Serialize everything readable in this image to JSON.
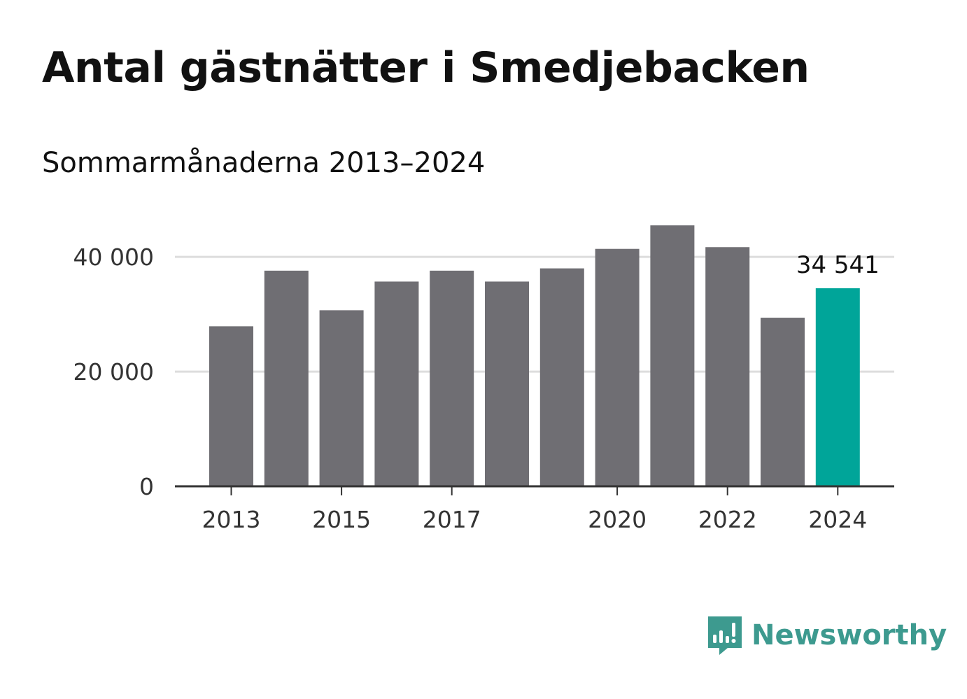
{
  "title": "Antal gästnätter i Smedjebacken",
  "subtitle": "Sommarmånaderna 2013–2024",
  "brand": {
    "name": "Newsworthy",
    "color": "#3d9a8f"
  },
  "colors": {
    "bar": "#6f6e73",
    "highlight": "#00a599",
    "grid": "#dddddd",
    "axis": "#333333"
  },
  "chart_data": {
    "type": "bar",
    "title": "Antal gästnätter i Smedjebacken",
    "subtitle": "Sommarmånaderna 2013–2024",
    "categories": [
      "2013",
      "2014",
      "2015",
      "2016",
      "2017",
      "2018",
      "2019",
      "2020",
      "2021",
      "2022",
      "2023",
      "2024"
    ],
    "values": [
      27900,
      37600,
      30700,
      35700,
      37600,
      35700,
      38000,
      41400,
      45500,
      41700,
      29400,
      34541
    ],
    "highlight_index": 11,
    "highlight_label": "34 541",
    "ylim": [
      0,
      46000
    ],
    "y_ticks": [
      {
        "value": 0,
        "label": "0"
      },
      {
        "value": 20000,
        "label": "20 000"
      },
      {
        "value": 40000,
        "label": "40 000"
      }
    ],
    "x_tick_labels": [
      "2013",
      "2015",
      "2017",
      "2020",
      "2022",
      "2024"
    ],
    "grid": true,
    "xlabel": "",
    "ylabel": ""
  }
}
